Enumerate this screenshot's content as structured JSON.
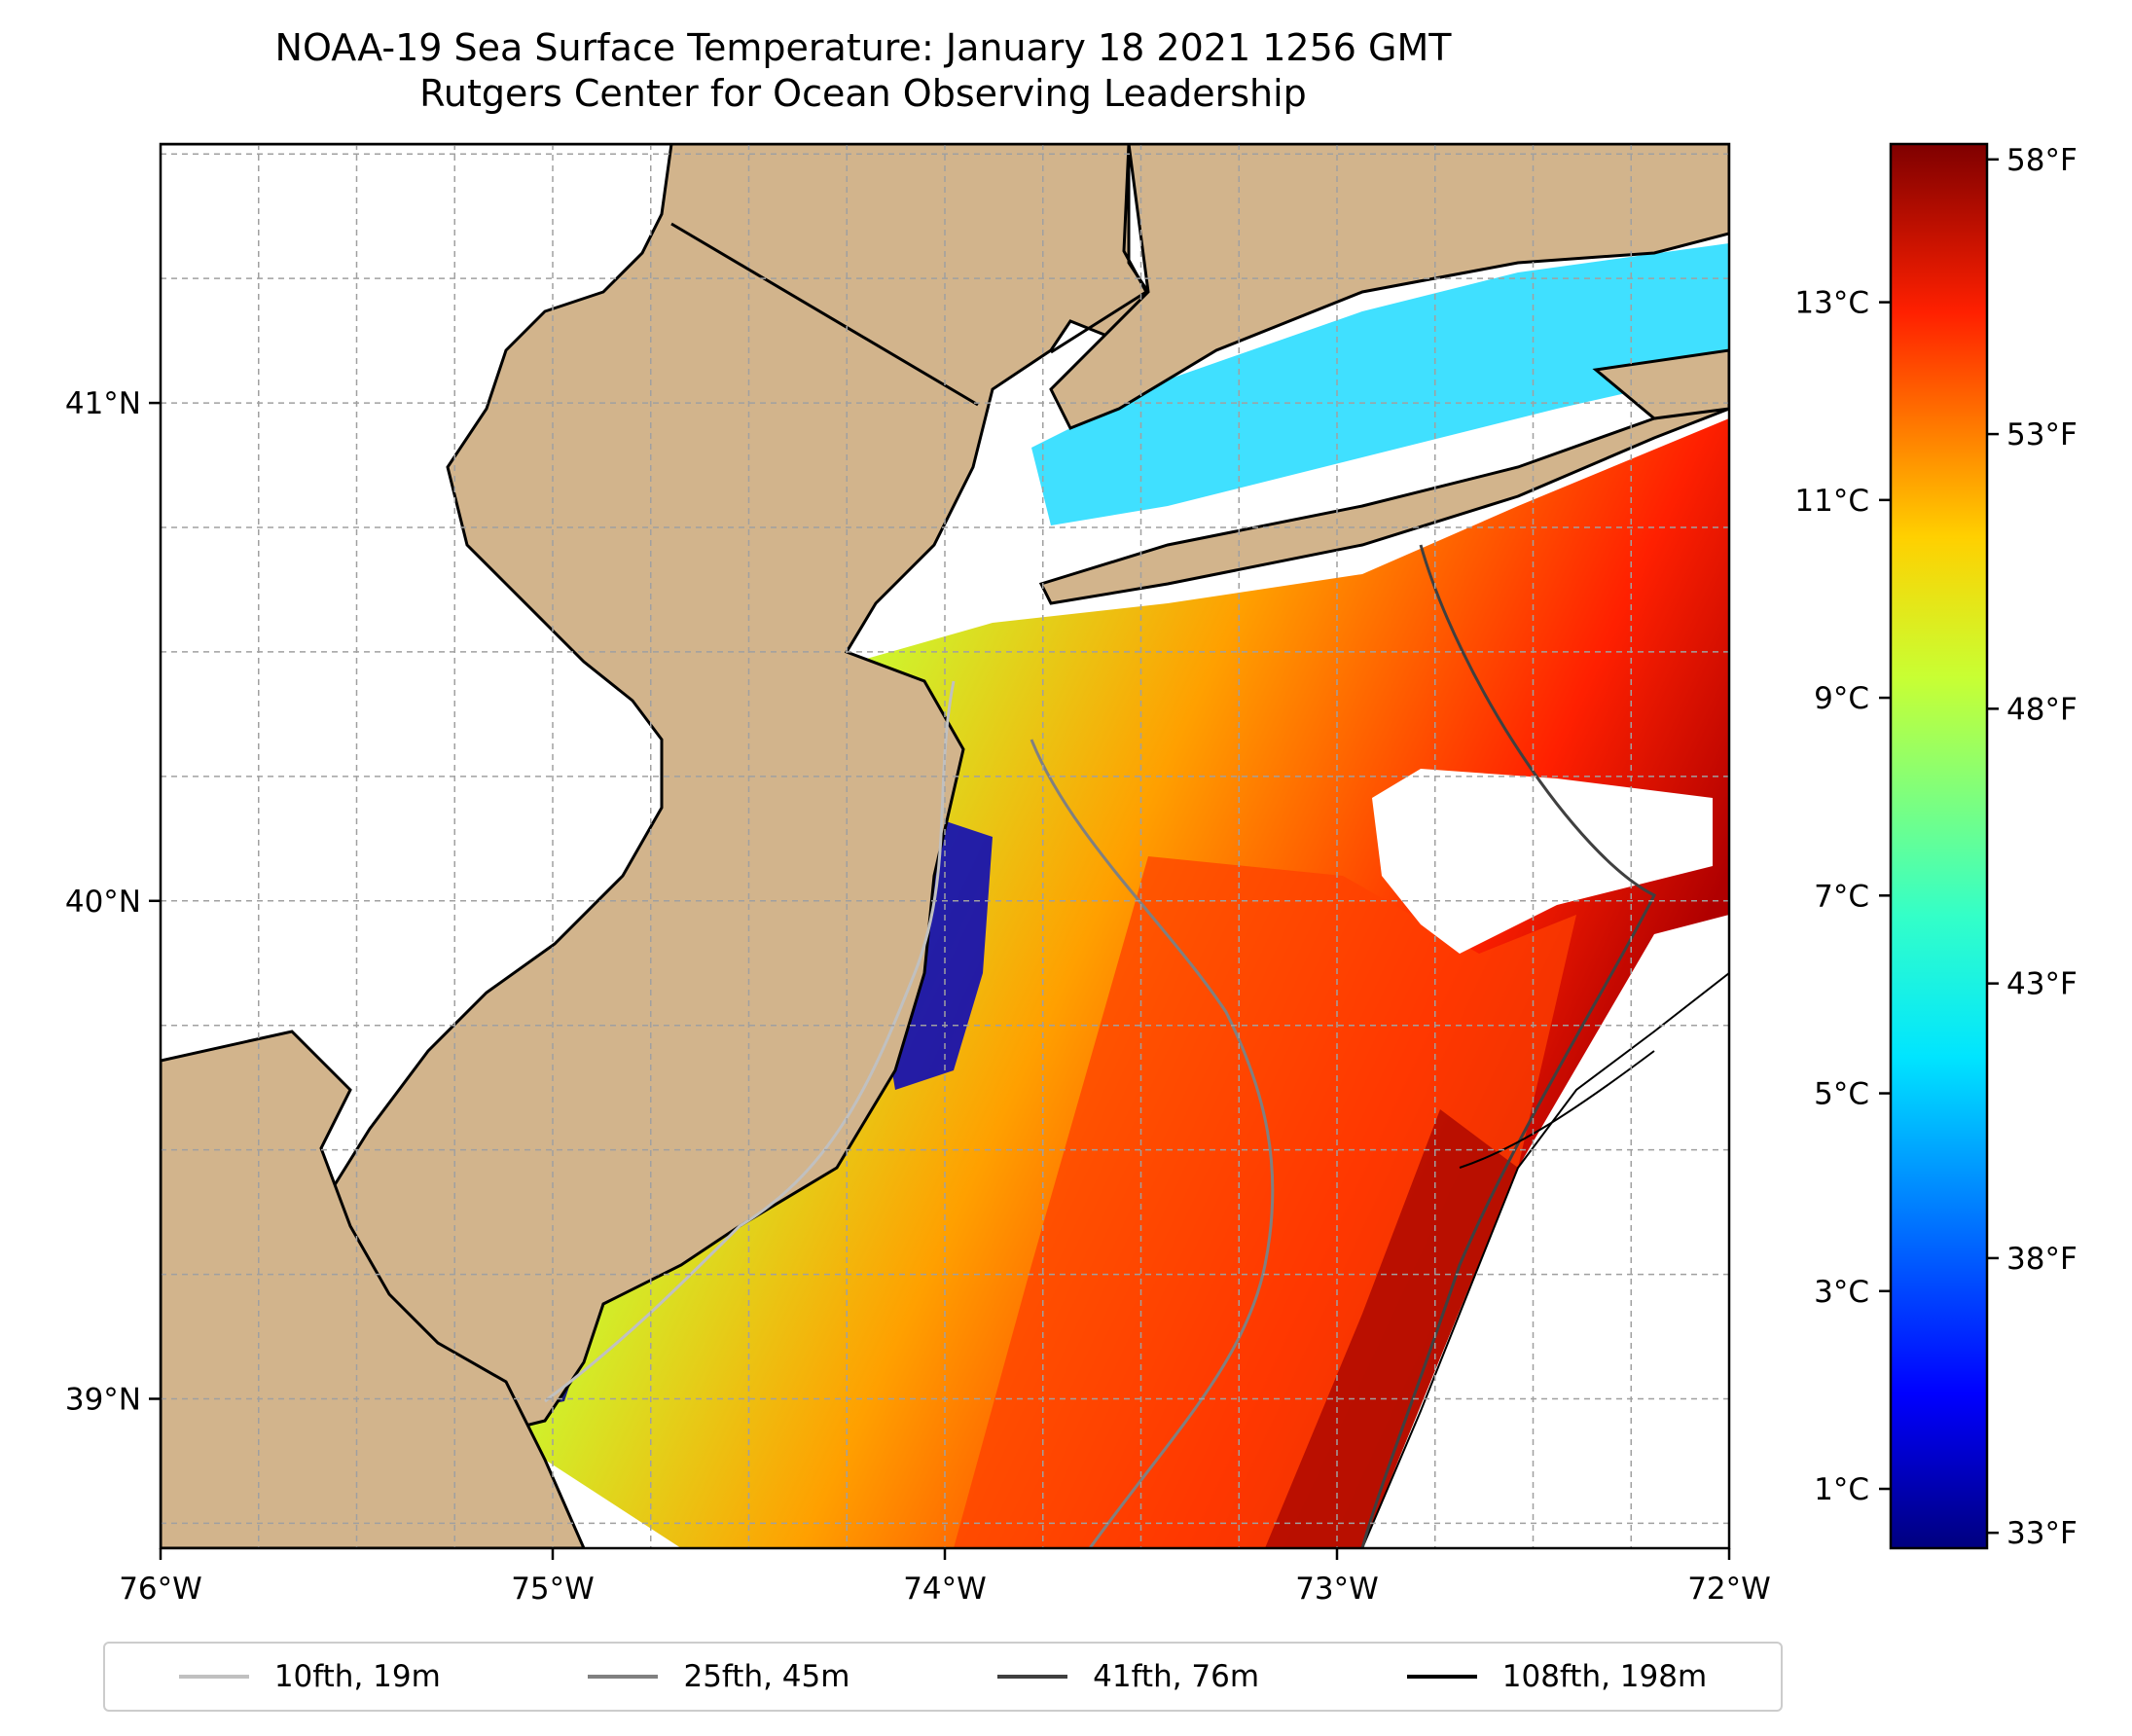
{
  "title": {
    "line1": "NOAA-19 Sea Surface Temperature: January 18 2021 1256 GMT",
    "line2": "Rutgers Center for Ocean Observing Leadership"
  },
  "map": {
    "lon_range": [
      -76,
      -72
    ],
    "lat_range": [
      38.7,
      41.52
    ],
    "lon_ticks": [
      "76°W",
      "75°W",
      "74°W",
      "73°W",
      "72°W"
    ],
    "lat_ticks": [
      "41°N",
      "40°N",
      "39°N"
    ],
    "colors": {
      "land": "#d2b48c",
      "coast": "#000000",
      "grid": "#a0a0a0"
    }
  },
  "colorbar": {
    "celsius_ticks": [
      "13°C",
      "11°C",
      "9°C",
      "7°C",
      "5°C",
      "3°C",
      "1°C"
    ],
    "fahrenheit_ticks": [
      "58°F",
      "53°F",
      "48°F",
      "43°F",
      "38°F",
      "33°F"
    ],
    "colormap": "jet"
  },
  "legend": {
    "items": [
      {
        "label": "10fth, 19m",
        "color": "#c0c0c0"
      },
      {
        "label": "25fth, 45m",
        "color": "#808080"
      },
      {
        "label": "41fth, 76m",
        "color": "#404040"
      },
      {
        "label": "108fth, 198m",
        "color": "#000000"
      }
    ]
  }
}
